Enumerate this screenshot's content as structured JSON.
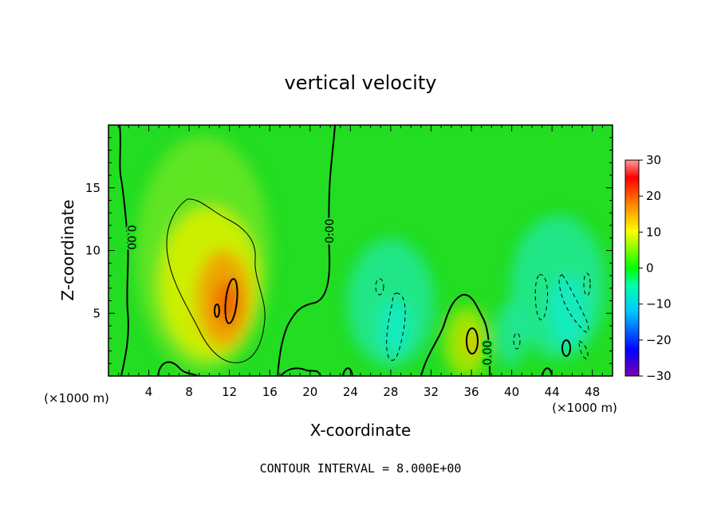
{
  "chart_data": {
    "type": "heatmap",
    "title": "vertical velocity",
    "xlabel": "X-coordinate",
    "ylabel": "Z-coordinate",
    "x_units": "(×1000 m)",
    "xlim": [
      0,
      50
    ],
    "ylim": [
      0,
      20
    ],
    "x_ticks": [
      4,
      8,
      12,
      16,
      20,
      24,
      28,
      32,
      36,
      40,
      44,
      48
    ],
    "y_ticks": [
      5,
      10,
      15
    ],
    "colorbar": {
      "min": -30,
      "max": 30,
      "ticks": [
        30,
        20,
        10,
        0,
        -10,
        -20,
        -30
      ],
      "tick_labels": [
        "30",
        "20",
        "10",
        "0",
        "−10",
        "−20",
        "−30"
      ]
    },
    "contour_labels": [
      "0.00",
      "0.00",
      "0.00"
    ],
    "contour_interval_text": "CONTOUR INTERVAL = 8.000E+00",
    "features": [
      {
        "kind": "updraft",
        "x": 11.5,
        "z": 7,
        "peak": 18
      },
      {
        "kind": "updraft",
        "x": 36,
        "z": 3,
        "peak": 10
      },
      {
        "kind": "downdraft",
        "x": 29,
        "z": 4,
        "peak": -8
      },
      {
        "kind": "downdraft",
        "x": 44,
        "z": 5,
        "peak": -8
      }
    ],
    "colors": {
      "background_field": "#22dd22",
      "colorbar": [
        "#7f00b0",
        "#0000ff",
        "#00c8ff",
        "#00ff00",
        "#ffff00",
        "#ff8000",
        "#ff0000",
        "#ff9090"
      ]
    }
  }
}
